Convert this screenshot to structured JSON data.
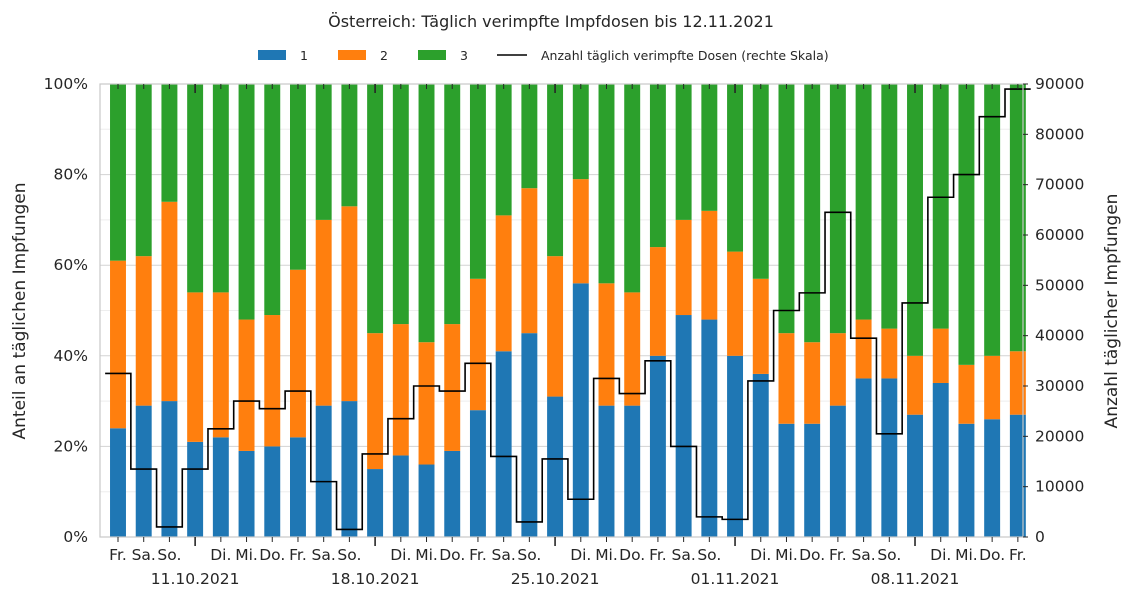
{
  "chart_data": {
    "type": "bar",
    "stacked": true,
    "title": "Österreich: Täglich verimpfte Impfdosen bis 12.11.2021",
    "ylabel_left": "Anteil an täglichen Impfungen",
    "ylabel_right": "Anzahl täglicher Impfungen",
    "ylim_left": [
      0,
      100
    ],
    "ylim_right": [
      0,
      90000
    ],
    "yticks_left": [
      "0%",
      "20%",
      "40%",
      "60%",
      "80%",
      "100%"
    ],
    "yticks_right": [
      "0",
      "10000",
      "20000",
      "30000",
      "40000",
      "50000",
      "60000",
      "70000",
      "80000",
      "90000"
    ],
    "grid": true,
    "legend_position": "top-center",
    "day_labels": [
      "Fr.",
      "Sa.",
      "So.",
      "",
      "Di.",
      "Mi.",
      "Do.",
      "Fr.",
      "Sa.",
      "So.",
      "",
      "Di.",
      "Mi.",
      "Do.",
      "Fr.",
      "Sa.",
      "So.",
      "",
      "Di.",
      "Mi.",
      "Do.",
      "Fr.",
      "Sa.",
      "So.",
      "",
      "Di.",
      "Mi.",
      "Do.",
      "Fr.",
      "Sa.",
      "So.",
      "",
      "Di.",
      "Mi.",
      "Do.",
      "Fr."
    ],
    "week_labels": [
      {
        "index": 3,
        "label": "11.10.2021"
      },
      {
        "index": 10,
        "label": "18.10.2021"
      },
      {
        "index": 17,
        "label": "25.10.2021"
      },
      {
        "index": 24,
        "label": "01.11.2021"
      },
      {
        "index": 31,
        "label": "08.11.2021"
      }
    ],
    "series": [
      {
        "name": "1",
        "color": "#1f77b4",
        "values": [
          24,
          29,
          30,
          21,
          22,
          19,
          20,
          22,
          29,
          30,
          15,
          18,
          16,
          19,
          28,
          41,
          45,
          31,
          56,
          29,
          29,
          40,
          49,
          48,
          40,
          36,
          25,
          25,
          29,
          35,
          35,
          27,
          34,
          25,
          26,
          27
        ]
      },
      {
        "name": "2",
        "color": "#ff7f0e",
        "values": [
          37,
          33,
          44,
          33,
          32,
          29,
          29,
          37,
          41,
          43,
          30,
          29,
          27,
          28,
          29,
          30,
          32,
          31,
          23,
          27,
          25,
          24,
          21,
          24,
          23,
          21,
          20,
          18,
          16,
          13,
          11,
          13,
          12,
          13,
          14,
          14
        ]
      },
      {
        "name": "3",
        "color": "#2ca02c",
        "values": [
          39,
          38,
          26,
          46,
          46,
          52,
          51,
          41,
          30,
          27,
          55,
          53,
          57,
          53,
          43,
          29,
          23,
          38,
          21,
          44,
          46,
          36,
          30,
          28,
          37,
          43,
          55,
          57,
          55,
          52,
          54,
          60,
          54,
          62,
          60,
          59
        ]
      }
    ],
    "line": {
      "name": "Anzahl täglich verimpfte Dosen (rechte Skala)",
      "color": "#000000",
      "values": [
        32500,
        13500,
        2000,
        13500,
        21500,
        27000,
        25500,
        29000,
        11000,
        1500,
        16500,
        23500,
        30000,
        29000,
        34500,
        16000,
        3000,
        15500,
        7500,
        31500,
        28500,
        35000,
        18000,
        4000,
        3500,
        31000,
        45000,
        48500,
        64500,
        39500,
        20500,
        46500,
        67500,
        72000,
        83500,
        89000
      ]
    }
  }
}
